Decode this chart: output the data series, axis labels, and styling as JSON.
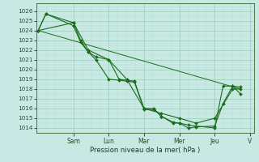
{
  "xlabel": "Pression niveau de la mer( hPa )",
  "background_color": "#c8e8e4",
  "grid_color_major": "#99ccbb",
  "grid_color_minor": "#bbddcc",
  "line_color": "#1a6e1a",
  "ylim": [
    1013.5,
    1026.8
  ],
  "xlim": [
    -0.1,
    11.2
  ],
  "yticks": [
    1014,
    1015,
    1016,
    1017,
    1018,
    1019,
    1020,
    1021,
    1022,
    1023,
    1024,
    1025,
    1026
  ],
  "day_labels": [
    "Sam",
    "Lun",
    "Mar",
    "Mer",
    "Jeu",
    "V"
  ],
  "day_positions": [
    1.83,
    3.67,
    5.5,
    7.33,
    9.17,
    11.0
  ],
  "series": [
    {
      "x": [
        0.0,
        0.4,
        1.83,
        2.2,
        2.6,
        3.0,
        3.67,
        4.2,
        4.6,
        5.0,
        5.5,
        6.0,
        6.4,
        7.0,
        7.33,
        7.8,
        8.2,
        9.17,
        9.6,
        10.1,
        10.5
      ],
      "y": [
        1024.0,
        1025.7,
        1024.8,
        1023.0,
        1021.8,
        1021.3,
        1021.0,
        1019.0,
        1018.9,
        1018.8,
        1016.0,
        1016.0,
        1015.2,
        1014.6,
        1014.5,
        1014.3,
        1014.2,
        1014.0,
        1018.3,
        1018.3,
        1017.5
      ],
      "markers": true
    },
    {
      "x": [
        0.0,
        0.4,
        1.83,
        2.2,
        2.6,
        3.0,
        3.67,
        4.2,
        4.6,
        5.0,
        5.5,
        6.0,
        6.4,
        7.0,
        7.33,
        7.8,
        8.2,
        9.17,
        9.6,
        10.1,
        10.5
      ],
      "y": [
        1024.0,
        1025.7,
        1024.5,
        1022.8,
        1021.8,
        1021.0,
        1019.0,
        1018.9,
        1018.8,
        1018.7,
        1015.9,
        1015.9,
        1015.2,
        1014.5,
        1014.5,
        1014.0,
        1014.1,
        1014.2,
        1016.5,
        1018.3,
        1018.2
      ],
      "markers": true
    },
    {
      "x": [
        0.0,
        1.83,
        2.6,
        3.67,
        4.6,
        5.5,
        6.4,
        7.33,
        8.2,
        9.17,
        10.1,
        10.5
      ],
      "y": [
        1024.0,
        1024.8,
        1022.0,
        1021.0,
        1019.0,
        1016.0,
        1015.5,
        1015.0,
        1014.5,
        1015.0,
        1018.0,
        1018.0
      ],
      "markers": true
    },
    {
      "x": [
        0.0,
        10.5
      ],
      "y": [
        1024.0,
        1018.0
      ],
      "markers": false
    }
  ]
}
